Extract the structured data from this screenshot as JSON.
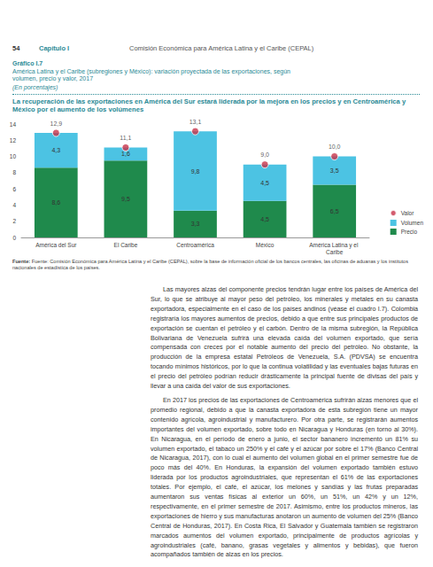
{
  "page": {
    "number": "54",
    "chapter": "Capítulo I",
    "publisher": "Comisión Económica para América Latina y el Caribe (CEPAL)",
    "body": [
      "Las mayores alzas del componente precios tendrán lugar entre los países de América del Sur, lo que se atribuye al mayor peso del petróleo, los minerales y metales en su canasta exportadora, especialmente en el caso de los países andinos (véase el cuadro I.7). Colombia registraría los mayores aumentos de precios, debido a que entre sus principales productos de exportación se cuentan el petróleo y el carbón. Dentro de la misma subregión, la República Bolivariana de Venezuela sufrirá una elevada caída del volumen exportado, que sería compensada con creces por el notable aumento del precio del petróleo. No obstante, la producción de la empresa estatal Petróleos de Venezuela, S.A. (PDVSA) se encuentra tocando mínimos históricos, por lo que la continua volatilidad y las eventuales bajas futuras en el precio del petróleo podrían reducir drásticamente la principal fuente de divisas del país y llevar a una caída del valor de sus exportaciones.",
      "En 2017 los precios de las exportaciones de Centroamérica sufrirán alzas menores que el promedio regional, debido a que la canasta exportadora de esta subregión tiene un mayor contenido agrícola, agroindustrial y manufacturero. Por otra parte, se registrarán aumentos importantes del volumen exportado, sobre todo en Nicaragua y Honduras (en torno al 30%). En Nicaragua, en el período de enero a junio, el sector bananero incrementó un 81% su volumen exportado, el tabaco un 250% y el café y el azúcar por sobre el 17% (Banco Central de Nicaragua, 2017), con lo cual el aumento del volumen global en el primer semestre fue de poco más del 40%. En Honduras, la expansión del volumen exportado también estuvo liderada por los productos agroindustriales, que representan el 61% de las exportaciones totales. Por ejemplo, el café, el azúcar, los melones y sandías y las frutas preparadas aumentaron sus ventas físicas al exterior un 60%, un 51%, un 42% y un 12%, respectivamente, en el primer semestre de 2017. Asimismo, entre los productos mineros, las exportaciones de hierro y sus manufacturas anotaron un aumento de volumen del 25% (Banco Central de Honduras, 2017). En Costa Rica, El Salvador y Guatemala también se registraron marcados aumentos del volumen exportado, principalmente de productos agrícolas y agroindustriales (café, banano, grasas vegetales y alimentos y bebidas), que fueron acompañados también de alzas en los precios."
    ]
  },
  "chart_data": {
    "type": "bar",
    "label": "Gráfico I.7",
    "title": "América Latina y el Caribe (subregiones y México): variación proyectada de las exportaciones, según volumen, precio y valor, 2017",
    "subtitle": "(En porcentajes)",
    "headline": "La recuperación de las exportaciones en América del Sur estará liderada por la mejora en los precios y en Centroamérica y México por el aumento de los volúmenes",
    "source_label": "Fuente:",
    "source": "Fuente: Comisión Económica para América Latina y el Caribe (CEPAL), sobre la base de información oficial de los bancos centrales, las oficinas de aduanas y los institutos nacionales de estadística de los países.",
    "categories": [
      "América del Sur",
      "El Caribe",
      "Centroamérica",
      "México",
      "América Latina y el Caribe"
    ],
    "series": [
      {
        "name": "Precio",
        "type": "bar",
        "color": "#1f8a4c",
        "values": [
          8.6,
          9.5,
          3.3,
          4.5,
          6.5
        ],
        "value_labels": [
          "8,6",
          "9,5",
          "3,3",
          "4,5",
          "6,5"
        ]
      },
      {
        "name": "Volumen",
        "type": "bar",
        "color": "#4cc3e3",
        "values": [
          4.3,
          1.6,
          9.8,
          4.5,
          3.5
        ],
        "value_labels": [
          "4,3",
          "1,6",
          "9,8",
          "4,5",
          "3,5"
        ]
      },
      {
        "name": "Valor",
        "type": "scatter",
        "marker": "circle",
        "color": "#c8334a",
        "values": [
          12.9,
          11.1,
          13.1,
          9.0,
          10.0
        ],
        "value_labels": [
          "12,9",
          "11,1",
          "13,1",
          "9,0",
          "10,0"
        ]
      }
    ],
    "stacked": true,
    "data_labels": true,
    "ylim": [
      0,
      14
    ],
    "yticks": [
      0,
      2,
      4,
      6,
      8,
      10,
      12,
      14
    ],
    "grid": false,
    "legend": "right"
  }
}
